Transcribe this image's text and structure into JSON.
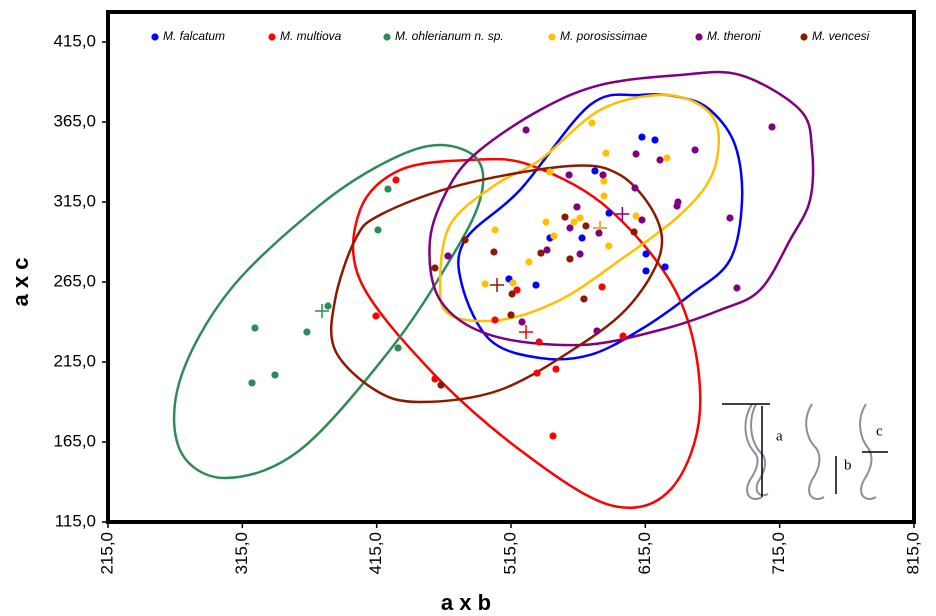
{
  "chart_data": {
    "type": "scatter",
    "x_label": "a x b",
    "y_label": "a x c",
    "xlim": [
      215,
      815
    ],
    "ylim": [
      115,
      433.75
    ],
    "xticks": [
      {
        "value": 215,
        "label": "215,0"
      },
      {
        "value": 315,
        "label": "315,0"
      },
      {
        "value": 415,
        "label": "415,0"
      },
      {
        "value": 515,
        "label": "515,0"
      },
      {
        "value": 615,
        "label": "615,0"
      },
      {
        "value": 715,
        "label": "715,0"
      },
      {
        "value": 815,
        "label": "815,0"
      }
    ],
    "yticks": [
      {
        "value": 115,
        "label": "115,0"
      },
      {
        "value": 165,
        "label": "165,0"
      },
      {
        "value": 215,
        "label": "215,0"
      },
      {
        "value": 265,
        "label": "265,0"
      },
      {
        "value": 315,
        "label": "315,0"
      },
      {
        "value": 365,
        "label": "365,0"
      },
      {
        "value": 415,
        "label": "415,0"
      }
    ],
    "grid": false,
    "legend": "top",
    "inset_labels": [
      "a",
      "b",
      "c"
    ],
    "series": [
      {
        "name": "M. falcatum",
        "color": "#0000ff",
        "x": [
          612.5,
          622.2,
          577.5,
          588,
          544,
          567.9,
          615.5,
          629.7,
          615.5,
          513.5,
          533.6
        ],
        "values": [
          355.6,
          353.75,
          334.4,
          308.1,
          292.5,
          292.5,
          282.5,
          274.4,
          271.9,
          266.9,
          263.1
        ],
        "centroid": {
          "x": 581.3,
          "y": 298.75
        },
        "outline": {
          "x": [
            521.7,
            573.8,
            611,
            640.8,
            663.2,
            681.8,
            687,
            678,
            648.3,
            611,
            573.8,
            536.6,
            499.4,
            478.5,
            480.8
          ],
          "y": [
            322.5,
            375.6,
            381.9,
            380.6,
            372.5,
            350.6,
            316.25,
            278.75,
            256.9,
            235,
            219.4,
            217.5,
            228.75,
            263.1,
            291.25
          ]
        }
      },
      {
        "name": "M. multiova",
        "color": "#ff0000",
        "x": [
          429.4,
          414.5,
          458.4,
          503.1,
          519.5,
          535.9,
          548.5,
          534.4,
          582.8,
          598.4,
          546.3
        ],
        "values": [
          328.75,
          243.75,
          204.4,
          241.25,
          260,
          227.5,
          210.6,
          208.1,
          261.9,
          231.25,
          168.75
        ],
        "centroid": {
          "x": 526.2,
          "y": 233.75
        },
        "outline": {
          "x": [
            484.5,
            529.2,
            588.7,
            640.8,
            655.7,
            633.4,
            588.7,
            521.7,
            454.7,
            402.6,
            402.6,
            432.4
          ],
          "y": [
            341.25,
            338.1,
            310,
            253.75,
            185,
            135,
            125.6,
            160,
            210,
            266.25,
            310,
            335
          ]
        }
      },
      {
        "name": "M. ohlerianum n. sp.",
        "color": "#2e8b57",
        "x": [
          423.4,
          416,
          378.8,
          363.1,
          324.4,
          339.3,
          322.2,
          430.9
        ],
        "values": [
          323.1,
          297.5,
          250,
          233.75,
          236.25,
          206.9,
          201.9,
          223.75
        ],
        "centroid": {
          "x": 374.3,
          "y": 246.9
        },
        "outline": {
          "x": [
            462.2,
            490.4,
            491.9,
            469.6,
            424.9,
            357.9,
            302.1,
            268.6,
            268.6,
            305.8,
            372.8,
            424.9
          ],
          "y": [
            350.6,
            341.25,
            316.25,
            278.75,
            222.5,
            160,
            142.5,
            160,
            203.75,
            260,
            313.1,
            341.25
          ]
        }
      },
      {
        "name": "M. porosissimae",
        "color": "#ffc000",
        "x": [
          575.3,
          585.7,
          544,
          584.2,
          584.2,
          561.9,
          541.1,
          566.4,
          503.1,
          547,
          587.8,
          528.4,
          516.5,
          495.7,
          631.1,
          608.1
        ],
        "values": [
          364.4,
          345.6,
          333.75,
          328.1,
          318.75,
          302.5,
          302.5,
          305,
          297.5,
          293.75,
          287.5,
          277.5,
          264.4,
          263.75,
          342.5,
          306.25
        ],
        "centroid": {
          "x": 581.3,
          "y": 298.75
        },
        "outline": {
          "x": [
            536.6,
            581.3,
            625.9,
            655.7,
            669.1,
            664.6,
            640.8,
            596.2,
            551.5,
            506.8,
            469.6,
            462.2,
            469.6,
            503.1
          ],
          "y": [
            341.25,
            372.5,
            381.9,
            375.6,
            360,
            331.9,
            306.9,
            278.75,
            253.75,
            241.25,
            244.4,
            263.1,
            300.6,
            325.6
          ]
        }
      },
      {
        "name": "M. theroni",
        "color": "#800080",
        "x": [
          526.2,
          709.3,
          652,
          625.9,
          608.1,
          558.2,
          583.5,
          607.3,
          639.3,
          638.6,
          564.1,
          558.9,
          580.5,
          612.5,
          541.8,
          566.4,
          468.1,
          678,
          683.2,
          579,
          523.2
        ],
        "values": [
          360,
          361.9,
          347.5,
          341.25,
          345,
          331.9,
          331.9,
          323.75,
          315,
          312.5,
          311.9,
          298.75,
          295.6,
          303.75,
          285,
          282.5,
          281.25,
          305,
          261.25,
          234.4,
          240
        ],
        "centroid": {
          "x": 597.9,
          "y": 307.5
        },
        "outline": {
          "x": [
            536.6,
            581.3,
            640.8,
            685.5,
            730.2,
            739.1,
            737.6,
            722.7,
            700.4,
            670.6,
            625.9,
            566.4,
            499.4,
            462.2,
            454.7,
            469.6,
            491.9
          ],
          "y": [
            372.5,
            388.1,
            394.4,
            394.4,
            372.5,
            347.5,
            316.25,
            291.25,
            260,
            247.5,
            235,
            225.6,
            231.9,
            253.75,
            291.25,
            325.6,
            347.5
          ]
        }
      },
      {
        "name": "M. vencesi",
        "color": "#8b1a00",
        "x": [
          480.8,
          458.4,
          502.3,
          555.2,
          537.3,
          570.8,
          558.9,
          606.6,
          515.8,
          569.3,
          515,
          462.9
        ],
        "values": [
          291.25,
          273.75,
          283.75,
          305.6,
          283.1,
          300,
          279.4,
          296.25,
          257.5,
          254.4,
          244.4,
          200.6
        ],
        "centroid": {
          "x": 504.6,
          "y": 263.1
        },
        "outline": {
          "x": [
            417.5,
            477,
            558.9,
            596.2,
            622.2,
            625.9,
            603.6,
            566.4,
            506.8,
            447.3,
            413.8,
            384,
            384,
            398.9
          ],
          "y": [
            306.9,
            325.6,
            337.5,
            331.9,
            306.9,
            281.9,
            250.6,
            225.6,
            197.5,
            190,
            197.5,
            222.5,
            253.75,
            291.25
          ]
        }
      }
    ]
  }
}
